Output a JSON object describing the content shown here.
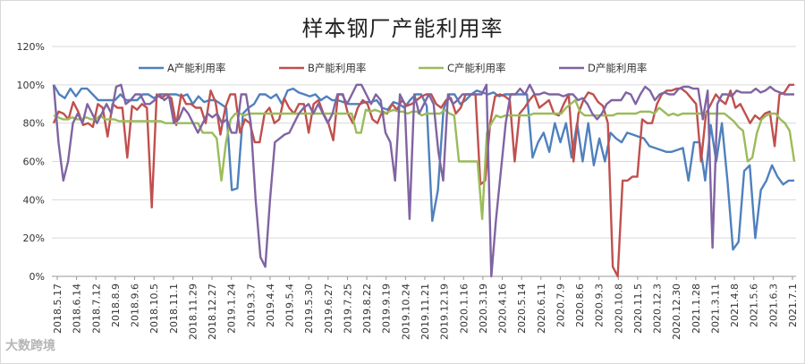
{
  "chart_data": {
    "type": "line",
    "title": "样本钢厂产能利用率",
    "xlabel": "",
    "ylabel": "",
    "ylim": [
      0,
      120
    ],
    "y_ticks": [
      "0%",
      "20%",
      "40%",
      "60%",
      "80%",
      "100%",
      "120%"
    ],
    "grid": "horizontal",
    "legend_position": "top",
    "x_tick_labels": [
      "2018.5.17",
      "2018.6.14",
      "2018.7.12",
      "2018.8.9",
      "2018.9.6",
      "2018.10.5",
      "2018.11.1",
      "2018.11.29",
      "2018.12.27",
      "2019.1.24",
      "2019.3.7",
      "2019.4.4",
      "2019.5.4",
      "2019.5.30",
      "2019.6.27",
      "2019.7.25",
      "2019.8.22",
      "2019.9.19",
      "2019.10.24",
      "2019.11.21",
      "2019.12.19",
      "2020.1.16",
      "2020.3.19",
      "2020.4.16",
      "2020.5.14",
      "2020.6.11",
      "2020.7.9",
      "2020.8.6",
      "2020.9.3",
      "2020.10.8",
      "2020.11.5",
      "2020.12.3",
      "2020.12.30",
      "2021.1.28",
      "2021.3.11",
      "2021.4.8",
      "2021.5.6",
      "2021.6.3",
      "2021.7.1"
    ],
    "series": [
      {
        "name": "A产能利用率",
        "color": "#4f81bd",
        "values": [
          100,
          95,
          93,
          98,
          94,
          98,
          98,
          95,
          92,
          92,
          92,
          92,
          95,
          92,
          92,
          92,
          95,
          95,
          93,
          95,
          95,
          95,
          95,
          94,
          95,
          90,
          94,
          91,
          92,
          92,
          90,
          88,
          45,
          46,
          85,
          88,
          90,
          95,
          95,
          93,
          95,
          90,
          97,
          98,
          96,
          95,
          94,
          95,
          92,
          94,
          92,
          92,
          91,
          90,
          90,
          90,
          91,
          91,
          92,
          88,
          87,
          91,
          90,
          88,
          92,
          95,
          95,
          89,
          29,
          45,
          87,
          95,
          95,
          90,
          92,
          95,
          97,
          96,
          95,
          96,
          94,
          95,
          95,
          95,
          95,
          95,
          62,
          70,
          75,
          65,
          80,
          70,
          80,
          62,
          80,
          60,
          80,
          58,
          72,
          60,
          75,
          72,
          70,
          75,
          74,
          73,
          72,
          68,
          67,
          66,
          65,
          65,
          66,
          67,
          50,
          70,
          70,
          50,
          79,
          60,
          80,
          50,
          14,
          18,
          55,
          58,
          20,
          45,
          50,
          58,
          52,
          48,
          50,
          50
        ]
      },
      {
        "name": "B产能利用率",
        "color": "#c0504d",
        "values": [
          80,
          86,
          85,
          82,
          91,
          86,
          79,
          80,
          78,
          90,
          88,
          73,
          90,
          88,
          88,
          62,
          89,
          87,
          90,
          88,
          36,
          95,
          93,
          95,
          93,
          79,
          95,
          90,
          90,
          88,
          88,
          80,
          97,
          91,
          74,
          88,
          95,
          95,
          75,
          82,
          80,
          70,
          70,
          85,
          88,
          80,
          82,
          93,
          88,
          85,
          90,
          90,
          75,
          90,
          92,
          85,
          80,
          71,
          95,
          95,
          85,
          80,
          88,
          92,
          90,
          82,
          80,
          86,
          85,
          90,
          87,
          92,
          89,
          90,
          92,
          94,
          95,
          95,
          90,
          88,
          92,
          93,
          85,
          88,
          95,
          95,
          95,
          48,
          50,
          80,
          94,
          95,
          94,
          92,
          60,
          85,
          88,
          92,
          95,
          88,
          90,
          92,
          85,
          84,
          90,
          95,
          60,
          85,
          92,
          96,
          95,
          91,
          89,
          80,
          5,
          0,
          50,
          50,
          52,
          52,
          82,
          80,
          80,
          90,
          95,
          97,
          97,
          98,
          98,
          96,
          93,
          90,
          60,
          85,
          90,
          95,
          92,
          90,
          97,
          88,
          90,
          85,
          80,
          84,
          82,
          85,
          86,
          68,
          95,
          96,
          100,
          100
        ]
      },
      {
        "name": "C产能利用率",
        "color": "#9bbb59",
        "values": [
          84,
          83,
          82,
          82,
          83,
          82,
          82,
          83,
          82,
          82,
          84,
          82,
          82,
          82,
          81,
          81,
          81,
          81,
          81,
          81,
          81,
          81,
          81,
          81,
          80,
          80,
          80,
          80,
          80,
          80,
          80,
          80,
          75,
          75,
          75,
          72,
          50,
          70,
          82,
          85,
          85,
          84,
          85,
          85,
          85,
          85,
          85,
          85,
          85,
          85,
          85,
          85,
          85,
          85,
          85,
          85,
          85,
          85,
          85,
          85,
          85,
          85,
          85,
          85,
          85,
          75,
          75,
          87,
          86,
          87,
          86,
          85,
          86,
          87,
          86,
          86,
          85,
          86,
          86,
          84,
          85,
          85,
          85,
          85,
          87,
          85,
          84,
          60,
          60,
          60,
          60,
          60,
          30,
          75,
          80,
          84,
          83,
          84,
          84,
          84,
          84,
          84,
          84,
          85,
          85,
          85,
          85,
          85,
          85,
          85,
          88,
          90,
          92,
          86,
          84,
          84,
          84,
          84,
          84,
          84,
          84,
          85,
          85,
          85,
          85,
          85,
          86,
          86,
          86,
          85,
          88,
          86,
          84,
          85,
          84,
          85,
          85,
          85,
          85,
          85,
          85,
          85,
          85,
          85,
          85,
          83,
          81,
          78,
          76,
          60,
          62,
          75,
          82,
          84,
          85,
          85,
          82,
          80,
          76,
          60
        ]
      },
      {
        "name": "D产能利用率",
        "color": "#8064a2",
        "values": [
          100,
          70,
          50,
          60,
          80,
          85,
          80,
          90,
          85,
          80,
          85,
          90,
          85,
          99,
          100,
          90,
          92,
          95,
          95,
          90,
          90,
          92,
          95,
          92,
          94,
          80,
          82,
          88,
          85,
          80,
          75,
          80,
          85,
          83,
          85,
          80,
          82,
          75,
          75,
          95,
          95,
          80,
          40,
          10,
          5,
          40,
          70,
          72,
          74,
          75,
          80,
          85,
          88,
          90,
          85,
          90,
          85,
          80,
          85,
          95,
          95,
          90,
          95,
          100,
          100,
          95,
          90,
          95,
          92,
          75,
          70,
          50,
          95,
          90,
          30,
          95,
          85,
          90,
          95,
          90,
          65,
          50,
          95,
          90,
          92,
          95,
          95,
          95,
          95,
          95,
          100,
          0,
          30,
          55,
          80,
          95,
          95,
          98,
          95,
          100,
          95,
          95,
          96,
          95,
          95,
          95,
          94,
          95,
          95,
          92,
          93,
          90,
          85,
          82,
          85,
          90,
          92,
          92,
          92,
          96,
          95,
          90,
          95,
          99,
          97,
          92,
          95,
          96,
          95,
          95,
          98,
          99,
          99,
          98,
          98,
          82,
          97,
          15,
          90,
          95,
          95,
          94,
          97,
          96,
          96,
          96,
          98,
          96,
          97,
          99,
          97,
          96,
          95,
          95,
          95
        ]
      }
    ]
  },
  "watermark": "大数跨境"
}
